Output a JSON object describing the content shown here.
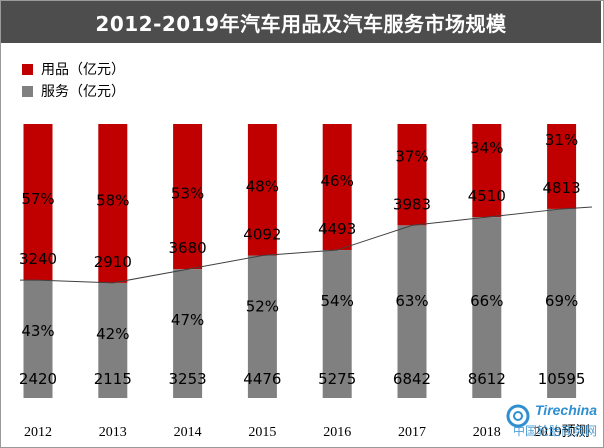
{
  "colors": {
    "title_bg": "#4d4d4d",
    "supplies": "#c00000",
    "services": "#808080",
    "line": "#404040",
    "watermark": "#2f8fd0"
  },
  "watermark": {
    "brand": "Tirechina",
    "subtitle": "中国轮胎商务网"
  },
  "chart_data": {
    "type": "bar",
    "stacked": true,
    "normalized": true,
    "title": "2012-2019年汽车用品及汽车服务市场规模",
    "categories": [
      "2012",
      "2013",
      "2014",
      "2015",
      "2016",
      "2017",
      "2018",
      "2019预测"
    ],
    "legend_position": "top-left",
    "series": [
      {
        "name": "用品（亿元）",
        "color": "#c00000",
        "values": [
          3240,
          2910,
          3680,
          4092,
          4493,
          3983,
          4510,
          4813
        ],
        "percent_labels": [
          "57%",
          "58%",
          "53%",
          "48%",
          "46%",
          "37%",
          "34%",
          "31%"
        ]
      },
      {
        "name": "服务（亿元）",
        "color": "#808080",
        "values": [
          2420,
          2115,
          3253,
          4476,
          5275,
          6842,
          8612,
          10595
        ],
        "percent_labels": [
          "43%",
          "42%",
          "47%",
          "52%",
          "54%",
          "63%",
          "66%",
          "69%"
        ],
        "share": [
          43,
          42,
          47,
          52,
          54,
          63,
          66,
          69
        ]
      }
    ]
  }
}
